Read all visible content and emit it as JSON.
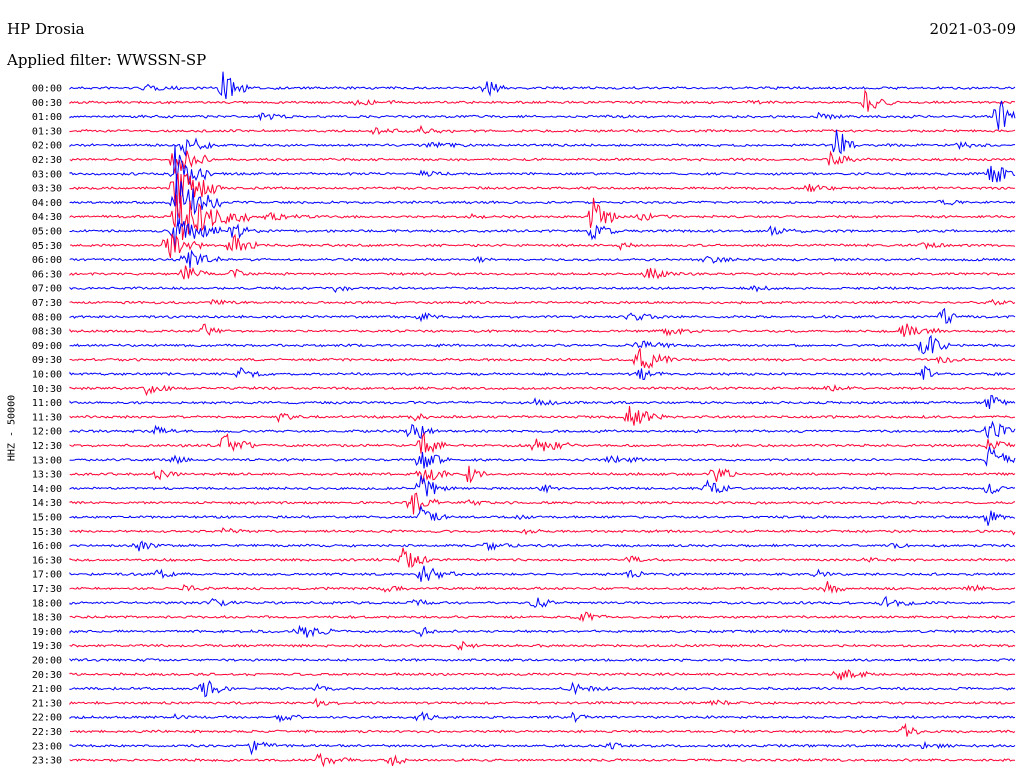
{
  "header": {
    "station": "HP Drosia",
    "date": "2021-03-09",
    "filter": "Applied filter: WWSSN-SP"
  },
  "chart_data": {
    "type": "line",
    "title": "HP Drosia",
    "ylabel": "HHZ - 50000",
    "colors": {
      "even_trace": "#0000ff",
      "odd_trace": "#ff0033"
    },
    "row_labels": [
      "00:00",
      "00:30",
      "01:00",
      "01:30",
      "02:00",
      "02:30",
      "03:00",
      "03:30",
      "04:00",
      "04:30",
      "05:00",
      "05:30",
      "06:00",
      "06:30",
      "07:00",
      "07:30",
      "08:00",
      "08:30",
      "09:00",
      "09:30",
      "10:00",
      "10:30",
      "11:00",
      "11:30",
      "12:00",
      "12:30",
      "13:00",
      "13:30",
      "14:00",
      "14:30",
      "15:00",
      "15:30",
      "16:00",
      "16:30",
      "17:00",
      "17:30",
      "18:00",
      "18:30",
      "19:00",
      "19:30",
      "20:00",
      "20:30",
      "21:00",
      "21:30",
      "22:00",
      "22:30",
      "23:00",
      "23:30"
    ],
    "x_range_minutes": [
      0,
      30
    ],
    "events": [
      {
        "row": 0,
        "t": 0.08,
        "amp": 3,
        "dur": 0.04
      },
      {
        "row": 0,
        "t": 0.16,
        "amp": 18,
        "dur": 0.03
      },
      {
        "row": 0,
        "t": 0.44,
        "amp": 10,
        "dur": 0.02
      },
      {
        "row": 1,
        "t": 0.3,
        "amp": 3,
        "dur": 0.05
      },
      {
        "row": 1,
        "t": 0.72,
        "amp": 3,
        "dur": 0.03
      },
      {
        "row": 1,
        "t": 0.84,
        "amp": 12,
        "dur": 0.03
      },
      {
        "row": 2,
        "t": 0.2,
        "amp": 3,
        "dur": 0.04
      },
      {
        "row": 2,
        "t": 0.79,
        "amp": 3,
        "dur": 0.03
      },
      {
        "row": 2,
        "t": 0.98,
        "amp": 25,
        "dur": 0.02
      },
      {
        "row": 3,
        "t": 0.32,
        "amp": 3,
        "dur": 0.04
      },
      {
        "row": 3,
        "t": 0.37,
        "amp": 4,
        "dur": 0.04
      },
      {
        "row": 4,
        "t": 0.12,
        "amp": 14,
        "dur": 0.03
      },
      {
        "row": 4,
        "t": 0.38,
        "amp": 3,
        "dur": 0.04
      },
      {
        "row": 4,
        "t": 0.81,
        "amp": 22,
        "dur": 0.02
      },
      {
        "row": 4,
        "t": 0.94,
        "amp": 4,
        "dur": 0.03
      },
      {
        "row": 5,
        "t": 0.11,
        "amp": 20,
        "dur": 0.04
      },
      {
        "row": 5,
        "t": 0.8,
        "amp": 10,
        "dur": 0.03
      },
      {
        "row": 6,
        "t": 0.11,
        "amp": 30,
        "dur": 0.04
      },
      {
        "row": 6,
        "t": 0.37,
        "amp": 3,
        "dur": 0.03
      },
      {
        "row": 6,
        "t": 0.97,
        "amp": 18,
        "dur": 0.03
      },
      {
        "row": 7,
        "t": 0.11,
        "amp": 30,
        "dur": 0.05
      },
      {
        "row": 7,
        "t": 0.78,
        "amp": 4,
        "dur": 0.03
      },
      {
        "row": 8,
        "t": 0.11,
        "amp": 32,
        "dur": 0.05
      },
      {
        "row": 8,
        "t": 0.92,
        "amp": 3,
        "dur": 0.03
      },
      {
        "row": 9,
        "t": 0.11,
        "amp": 30,
        "dur": 0.08
      },
      {
        "row": 9,
        "t": 0.21,
        "amp": 4,
        "dur": 0.05
      },
      {
        "row": 9,
        "t": 0.42,
        "amp": 3,
        "dur": 0.02
      },
      {
        "row": 9,
        "t": 0.55,
        "amp": 28,
        "dur": 0.03
      },
      {
        "row": 9,
        "t": 0.6,
        "amp": 4,
        "dur": 0.04
      },
      {
        "row": 10,
        "t": 0.11,
        "amp": 22,
        "dur": 0.05
      },
      {
        "row": 10,
        "t": 0.17,
        "amp": 10,
        "dur": 0.03
      },
      {
        "row": 10,
        "t": 0.55,
        "amp": 12,
        "dur": 0.03
      },
      {
        "row": 10,
        "t": 0.74,
        "amp": 4,
        "dur": 0.04
      },
      {
        "row": 11,
        "t": 0.1,
        "amp": 16,
        "dur": 0.04
      },
      {
        "row": 11,
        "t": 0.17,
        "amp": 14,
        "dur": 0.03
      },
      {
        "row": 11,
        "t": 0.58,
        "amp": 4,
        "dur": 0.02
      },
      {
        "row": 11,
        "t": 0.9,
        "amp": 3,
        "dur": 0.03
      },
      {
        "row": 12,
        "t": 0.12,
        "amp": 12,
        "dur": 0.04
      },
      {
        "row": 12,
        "t": 0.43,
        "amp": 3,
        "dur": 0.02
      },
      {
        "row": 12,
        "t": 0.67,
        "amp": 5,
        "dur": 0.03
      },
      {
        "row": 13,
        "t": 0.12,
        "amp": 10,
        "dur": 0.03
      },
      {
        "row": 13,
        "t": 0.17,
        "amp": 8,
        "dur": 0.02
      },
      {
        "row": 13,
        "t": 0.61,
        "amp": 7,
        "dur": 0.04
      },
      {
        "row": 14,
        "t": 0.28,
        "amp": 4,
        "dur": 0.02
      },
      {
        "row": 14,
        "t": 0.72,
        "amp": 3,
        "dur": 0.03
      },
      {
        "row": 15,
        "t": 0.15,
        "amp": 3,
        "dur": 0.03
      },
      {
        "row": 15,
        "t": 0.97,
        "amp": 3,
        "dur": 0.03
      },
      {
        "row": 16,
        "t": 0.37,
        "amp": 4,
        "dur": 0.03
      },
      {
        "row": 16,
        "t": 0.59,
        "amp": 5,
        "dur": 0.04
      },
      {
        "row": 16,
        "t": 0.92,
        "amp": 14,
        "dur": 0.02
      },
      {
        "row": 17,
        "t": 0.14,
        "amp": 8,
        "dur": 0.02
      },
      {
        "row": 17,
        "t": 0.63,
        "amp": 4,
        "dur": 0.04
      },
      {
        "row": 17,
        "t": 0.88,
        "amp": 8,
        "dur": 0.04
      },
      {
        "row": 18,
        "t": 0.6,
        "amp": 6,
        "dur": 0.04
      },
      {
        "row": 18,
        "t": 0.9,
        "amp": 18,
        "dur": 0.03
      },
      {
        "row": 19,
        "t": 0.6,
        "amp": 14,
        "dur": 0.04
      },
      {
        "row": 19,
        "t": 0.92,
        "amp": 6,
        "dur": 0.02
      },
      {
        "row": 20,
        "t": 0.18,
        "amp": 7,
        "dur": 0.03
      },
      {
        "row": 20,
        "t": 0.6,
        "amp": 8,
        "dur": 0.03
      },
      {
        "row": 20,
        "t": 0.9,
        "amp": 10,
        "dur": 0.02
      },
      {
        "row": 21,
        "t": 0.08,
        "amp": 6,
        "dur": 0.03
      },
      {
        "row": 21,
        "t": 0.8,
        "amp": 3,
        "dur": 0.03
      },
      {
        "row": 22,
        "t": 0.49,
        "amp": 6,
        "dur": 0.03
      },
      {
        "row": 22,
        "t": 0.97,
        "amp": 12,
        "dur": 0.02
      },
      {
        "row": 23,
        "t": 0.22,
        "amp": 4,
        "dur": 0.03
      },
      {
        "row": 23,
        "t": 0.36,
        "amp": 6,
        "dur": 0.02
      },
      {
        "row": 23,
        "t": 0.59,
        "amp": 12,
        "dur": 0.04
      },
      {
        "row": 24,
        "t": 0.09,
        "amp": 5,
        "dur": 0.03
      },
      {
        "row": 24,
        "t": 0.36,
        "amp": 14,
        "dur": 0.03
      },
      {
        "row": 24,
        "t": 0.97,
        "amp": 18,
        "dur": 0.03
      },
      {
        "row": 25,
        "t": 0.16,
        "amp": 14,
        "dur": 0.04
      },
      {
        "row": 25,
        "t": 0.37,
        "amp": 16,
        "dur": 0.03
      },
      {
        "row": 25,
        "t": 0.49,
        "amp": 12,
        "dur": 0.04
      },
      {
        "row": 25,
        "t": 0.97,
        "amp": 8,
        "dur": 0.03
      },
      {
        "row": 26,
        "t": 0.11,
        "amp": 4,
        "dur": 0.02
      },
      {
        "row": 26,
        "t": 0.37,
        "amp": 14,
        "dur": 0.03
      },
      {
        "row": 26,
        "t": 0.57,
        "amp": 5,
        "dur": 0.04
      },
      {
        "row": 26,
        "t": 0.97,
        "amp": 14,
        "dur": 0.04
      },
      {
        "row": 27,
        "t": 0.09,
        "amp": 6,
        "dur": 0.03
      },
      {
        "row": 27,
        "t": 0.37,
        "amp": 14,
        "dur": 0.03
      },
      {
        "row": 27,
        "t": 0.42,
        "amp": 12,
        "dur": 0.02
      },
      {
        "row": 27,
        "t": 0.68,
        "amp": 10,
        "dur": 0.03
      },
      {
        "row": 28,
        "t": 0.37,
        "amp": 14,
        "dur": 0.03
      },
      {
        "row": 28,
        "t": 0.5,
        "amp": 4,
        "dur": 0.02
      },
      {
        "row": 28,
        "t": 0.67,
        "amp": 10,
        "dur": 0.03
      },
      {
        "row": 28,
        "t": 0.97,
        "amp": 10,
        "dur": 0.02
      },
      {
        "row": 29,
        "t": 0.36,
        "amp": 14,
        "dur": 0.03
      },
      {
        "row": 29,
        "t": 0.42,
        "amp": 3,
        "dur": 0.02
      },
      {
        "row": 30,
        "t": 0.37,
        "amp": 12,
        "dur": 0.03
      },
      {
        "row": 30,
        "t": 0.47,
        "amp": 3,
        "dur": 0.02
      },
      {
        "row": 30,
        "t": 0.97,
        "amp": 10,
        "dur": 0.02
      },
      {
        "row": 31,
        "t": 0.16,
        "amp": 3,
        "dur": 0.03
      },
      {
        "row": 31,
        "t": 0.48,
        "amp": 3,
        "dur": 0.02
      },
      {
        "row": 31,
        "t": 1.0,
        "amp": 14,
        "dur": 0.03
      },
      {
        "row": 32,
        "t": 0.07,
        "amp": 8,
        "dur": 0.03
      },
      {
        "row": 32,
        "t": 0.44,
        "amp": 4,
        "dur": 0.04
      },
      {
        "row": 32,
        "t": 0.87,
        "amp": 3,
        "dur": 0.02
      },
      {
        "row": 33,
        "t": 0.35,
        "amp": 14,
        "dur": 0.03
      },
      {
        "row": 33,
        "t": 0.59,
        "amp": 4,
        "dur": 0.03
      },
      {
        "row": 33,
        "t": 0.84,
        "amp": 3,
        "dur": 0.02
      },
      {
        "row": 34,
        "t": 0.09,
        "amp": 5,
        "dur": 0.04
      },
      {
        "row": 34,
        "t": 0.37,
        "amp": 10,
        "dur": 0.04
      },
      {
        "row": 34,
        "t": 0.59,
        "amp": 6,
        "dur": 0.02
      },
      {
        "row": 34,
        "t": 0.79,
        "amp": 4,
        "dur": 0.02
      },
      {
        "row": 35,
        "t": 0.12,
        "amp": 3,
        "dur": 0.03
      },
      {
        "row": 35,
        "t": 0.33,
        "amp": 3,
        "dur": 0.03
      },
      {
        "row": 35,
        "t": 0.8,
        "amp": 8,
        "dur": 0.02
      },
      {
        "row": 35,
        "t": 0.95,
        "amp": 4,
        "dur": 0.03
      },
      {
        "row": 36,
        "t": 0.15,
        "amp": 4,
        "dur": 0.03
      },
      {
        "row": 36,
        "t": 0.36,
        "amp": 4,
        "dur": 0.03
      },
      {
        "row": 36,
        "t": 0.49,
        "amp": 8,
        "dur": 0.03
      },
      {
        "row": 36,
        "t": 0.86,
        "amp": 6,
        "dur": 0.04
      },
      {
        "row": 37,
        "t": 0.54,
        "amp": 6,
        "dur": 0.03
      },
      {
        "row": 38,
        "t": 0.24,
        "amp": 10,
        "dur": 0.04
      },
      {
        "row": 38,
        "t": 0.37,
        "amp": 5,
        "dur": 0.02
      },
      {
        "row": 38,
        "t": 1.0,
        "amp": 4,
        "dur": 0.02
      },
      {
        "row": 39,
        "t": 0.41,
        "amp": 6,
        "dur": 0.02
      },
      {
        "row": 41,
        "t": 0.81,
        "amp": 8,
        "dur": 0.04
      },
      {
        "row": 42,
        "t": 0.14,
        "amp": 12,
        "dur": 0.03
      },
      {
        "row": 42,
        "t": 0.26,
        "amp": 4,
        "dur": 0.02
      },
      {
        "row": 42,
        "t": 0.53,
        "amp": 5,
        "dur": 0.04
      },
      {
        "row": 43,
        "t": 0.26,
        "amp": 3,
        "dur": 0.03
      },
      {
        "row": 43,
        "t": 0.68,
        "amp": 3,
        "dur": 0.03
      },
      {
        "row": 44,
        "t": 0.11,
        "amp": 3,
        "dur": 0.02
      },
      {
        "row": 44,
        "t": 0.22,
        "amp": 4,
        "dur": 0.03
      },
      {
        "row": 44,
        "t": 0.37,
        "amp": 6,
        "dur": 0.02
      },
      {
        "row": 44,
        "t": 0.53,
        "amp": 6,
        "dur": 0.02
      },
      {
        "row": 45,
        "t": 0.88,
        "amp": 8,
        "dur": 0.02
      },
      {
        "row": 46,
        "t": 0.19,
        "amp": 8,
        "dur": 0.03
      },
      {
        "row": 46,
        "t": 0.57,
        "amp": 3,
        "dur": 0.03
      },
      {
        "row": 46,
        "t": 0.9,
        "amp": 4,
        "dur": 0.03
      },
      {
        "row": 47,
        "t": 0.26,
        "amp": 7,
        "dur": 0.04
      },
      {
        "row": 47,
        "t": 0.34,
        "amp": 6,
        "dur": 0.02
      }
    ]
  }
}
